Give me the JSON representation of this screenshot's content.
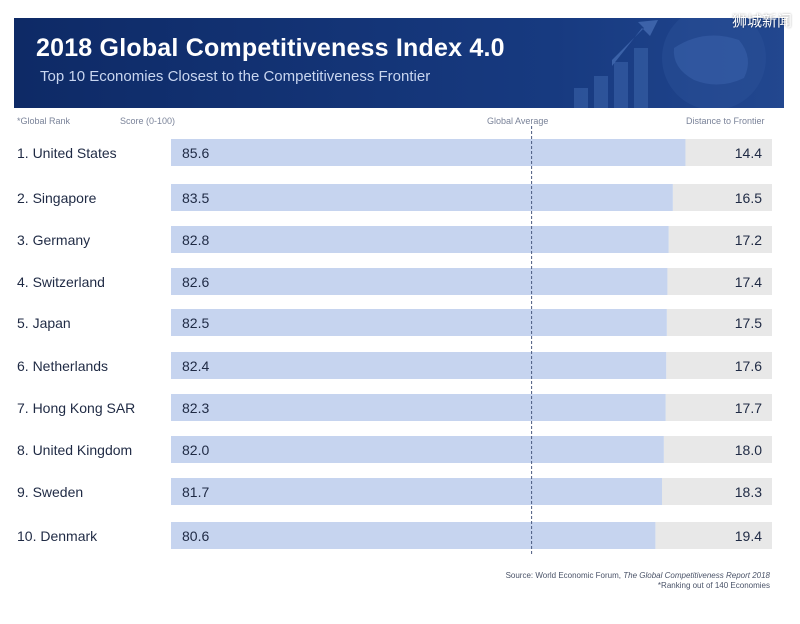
{
  "chart_data": {
    "type": "bar",
    "title": "2018 Global Competitiveness Index 4.0",
    "subtitle": "Top 10 Economies Closest to the Competitiveness Frontier",
    "column_headers": {
      "rank": "*Global Rank",
      "score": "Score (0-100)",
      "average": "Global Average",
      "distance": "Distance to Frontier"
    },
    "categories": [
      "1. United States",
      "2. Singapore",
      "3. Germany",
      "4. Switzerland",
      "5. Japan",
      "6. Netherlands",
      "7. Hong Kong SAR",
      "8. United Kingdom",
      "9. Sweden",
      "10. Denmark"
    ],
    "series": [
      {
        "name": "Score",
        "values": [
          85.6,
          83.5,
          82.8,
          82.6,
          82.5,
          82.4,
          82.3,
          82.0,
          81.7,
          80.6
        ]
      },
      {
        "name": "Distance to Frontier",
        "values": [
          14.4,
          16.5,
          17.2,
          17.4,
          17.5,
          17.6,
          17.7,
          18.0,
          18.3,
          19.4
        ]
      }
    ],
    "value_labels": {
      "score": [
        "85.6",
        "83.5",
        "82.8",
        "82.6",
        "82.5",
        "82.4",
        "82.3",
        "82.0",
        "81.7",
        "80.6"
      ],
      "distance": [
        "14.4",
        "16.5",
        "17.2",
        "17.4",
        "17.5",
        "17.6",
        "17.7",
        "18.0",
        "18.3",
        "19.4"
      ]
    },
    "xlim": [
      0,
      100
    ],
    "global_average": 60,
    "colors": {
      "score_bar": "#c6d4ef",
      "distance_bar": "#e8e8e8",
      "header_bg": "#143578",
      "average_line": "#4a5a80"
    },
    "source_prefix": "Source: World Economic Forum,",
    "source_title": "The Global Competitiveness Report 2018",
    "note": "*Ranking out of 140 Economies"
  },
  "watermark": "狮城新闻"
}
